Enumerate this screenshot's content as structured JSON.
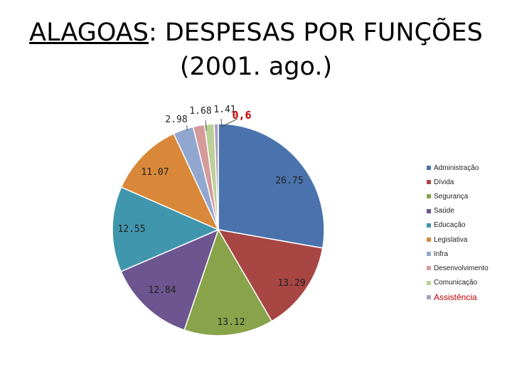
{
  "title": {
    "bold_part": "ALAGOAS",
    "rest_line1": ": DESPESAS POR FUNÇÕES",
    "line2": "(2001. ago.)"
  },
  "chart_data": {
    "type": "pie",
    "title": "ALAGOAS: DESPESAS POR FUNÇÕES (2001. ago.)",
    "categories": [
      "Administração",
      "Dívida",
      "Segurança",
      "Saúde",
      "Educação",
      "Legislativa",
      "Infra",
      "Desenvolvimento",
      "Comunicação",
      "Assistência"
    ],
    "values": [
      26.75,
      13.29,
      13.12,
      12.84,
      12.55,
      11.07,
      2.98,
      1.68,
      1.41,
      0.6
    ],
    "value_labels": [
      "26.75",
      "13.29",
      "13.12",
      "12.84",
      "12.55",
      "11.07",
      "2.98",
      "1.68",
      "1.41",
      "0,6"
    ],
    "colors": [
      "#4a73ad",
      "#a84644",
      "#88a34a",
      "#6d5590",
      "#4096ad",
      "#d88838",
      "#91a7cf",
      "#d49b9a",
      "#bccf98",
      "#a99ec0"
    ],
    "highlight": "Assistência",
    "highlight_color": "#c00000",
    "legend_position": "right"
  }
}
